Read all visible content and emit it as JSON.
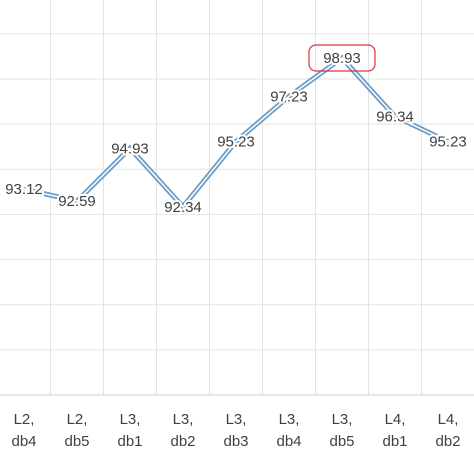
{
  "chart_data": {
    "type": "line",
    "categories": [
      [
        "L2,",
        "db4"
      ],
      [
        "L2,",
        "db5"
      ],
      [
        "L3,",
        "db1"
      ],
      [
        "L3,",
        "db2"
      ],
      [
        "L3,",
        "db3"
      ],
      [
        "L3,",
        "db4"
      ],
      [
        "L3,",
        "db5"
      ],
      [
        "L4,",
        "db1"
      ],
      [
        "L4,",
        "db2"
      ]
    ],
    "series": [
      {
        "color": "#6a9cc8",
        "values": [
          93.12,
          92.59,
          94.93,
          92.34,
          95.23,
          97.23,
          98.93,
          96.34,
          95.23
        ]
      }
    ],
    "ylim": [
      84,
      101.5
    ],
    "yticks": [
      84,
      86,
      88,
      90,
      92,
      94,
      96,
      98,
      100
    ],
    "grid": true,
    "highlight_index": 6,
    "highlight_color": "#d9363e"
  }
}
